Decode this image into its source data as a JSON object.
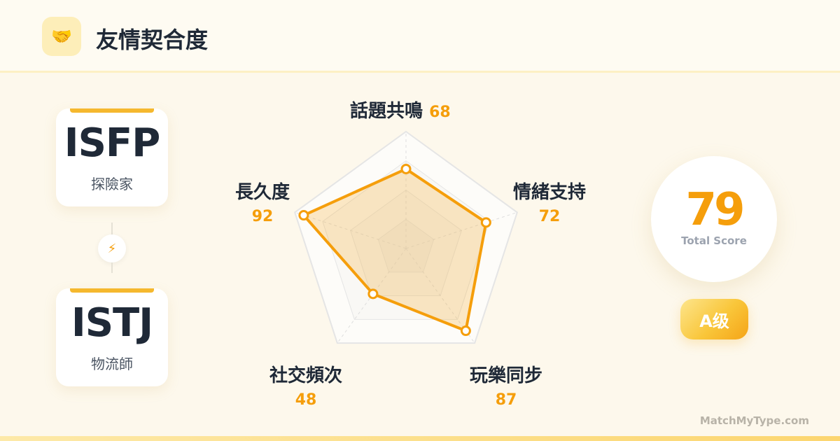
{
  "header": {
    "icon": "handshake-icon",
    "icon_glyph": "🤝",
    "title": "友情契合度"
  },
  "types": [
    {
      "code": "ISFP",
      "name": "探險家"
    },
    {
      "code": "ISTJ",
      "name": "物流師"
    }
  ],
  "connector_icon": {
    "name": "lightning-icon",
    "glyph": "⚡"
  },
  "chart_data": {
    "type": "radar",
    "range": [
      0,
      100
    ],
    "axes": [
      {
        "label": "話題共鳴",
        "value": 68
      },
      {
        "label": "情緒支持",
        "value": 72
      },
      {
        "label": "玩樂同步",
        "value": 87
      },
      {
        "label": "社交頻次",
        "value": 48
      },
      {
        "label": "長久度",
        "value": 92
      }
    ],
    "color": "#f59e0b"
  },
  "score": {
    "value": "79",
    "caption": "Total Score",
    "grade": "A级"
  },
  "footer": "MatchMyType.com"
}
